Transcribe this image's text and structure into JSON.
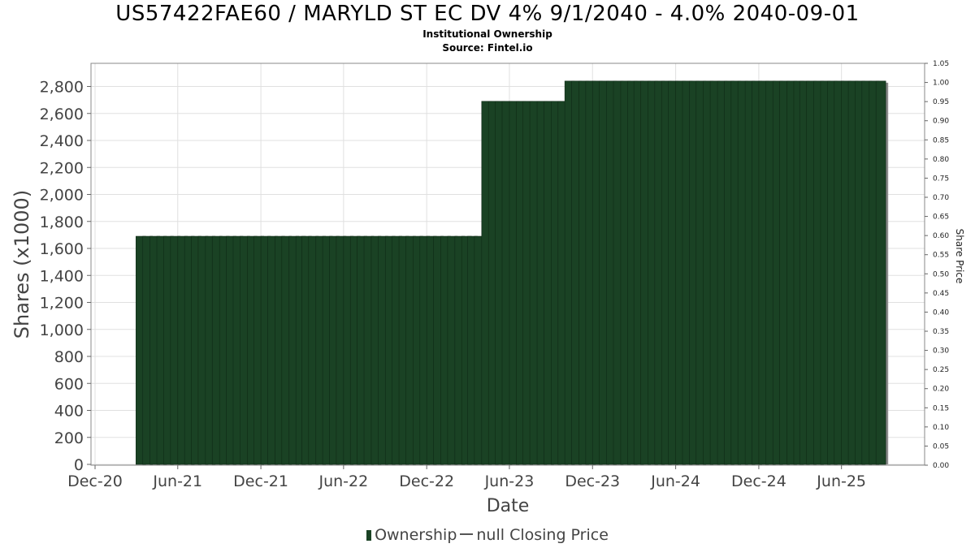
{
  "title": "US57422FAE60 / MARYLD ST EC DV 4% 9/1/2040 - 4.0% 2040-09-01",
  "subtitle": "Institutional Ownership",
  "source": "Source: Fintel.io",
  "legend": {
    "ownership_label": "Ownership",
    "price_label": "null Closing Price"
  },
  "colors": {
    "bar": "#1a4224",
    "bar_shadow": "#8a8a8a",
    "grid": "#e0e0e0",
    "axis": "#666666"
  },
  "chart_data": {
    "type": "bar",
    "title": "US57422FAE60 / MARYLD ST EC DV 4% 9/1/2040 - 4.0% 2040-09-01",
    "xlabel": "Date",
    "ylabel": "Shares (x1000)",
    "y2label": "Share Price",
    "ylim": [
      0,
      2960
    ],
    "y2lim": [
      0,
      1.05
    ],
    "y_ticks": [
      "0",
      "200",
      "400",
      "600",
      "800",
      "1,000",
      "1,200",
      "1,400",
      "1,600",
      "1,800",
      "2,000",
      "2,200",
      "2,400",
      "2,600",
      "2,800"
    ],
    "y2_ticks": [
      "0.00",
      "0.05",
      "0.10",
      "0.15",
      "0.20",
      "0.25",
      "0.30",
      "0.35",
      "0.40",
      "0.45",
      "0.50",
      "0.55",
      "0.60",
      "0.65",
      "0.70",
      "0.75",
      "0.80",
      "0.85",
      "0.90",
      "0.95",
      "1.00",
      "1.05"
    ],
    "x_ticks": [
      "Dec-20",
      "Jun-21",
      "Dec-21",
      "Jun-22",
      "Dec-22",
      "Jun-23",
      "Dec-23",
      "Jun-24",
      "Dec-24",
      "Jun-25"
    ],
    "x_tick_dates": [
      "2020-12-01",
      "2021-06-01",
      "2021-12-01",
      "2022-06-01",
      "2022-12-01",
      "2023-06-01",
      "2023-12-01",
      "2024-06-01",
      "2024-12-01",
      "2025-06-01"
    ],
    "x_start": "2020-12-01",
    "x_end": "2025-12-01",
    "grid": true,
    "legend_position": "bottom",
    "series": [
      {
        "name": "Ownership",
        "segments": [
          {
            "start": "2021-03-01",
            "end": "2023-03-31",
            "value": 1690
          },
          {
            "start": "2023-04-01",
            "end": "2023-09-30",
            "value": 2690
          },
          {
            "start": "2023-10-01",
            "end": "2025-08-31",
            "value": 2840
          }
        ]
      }
    ]
  }
}
